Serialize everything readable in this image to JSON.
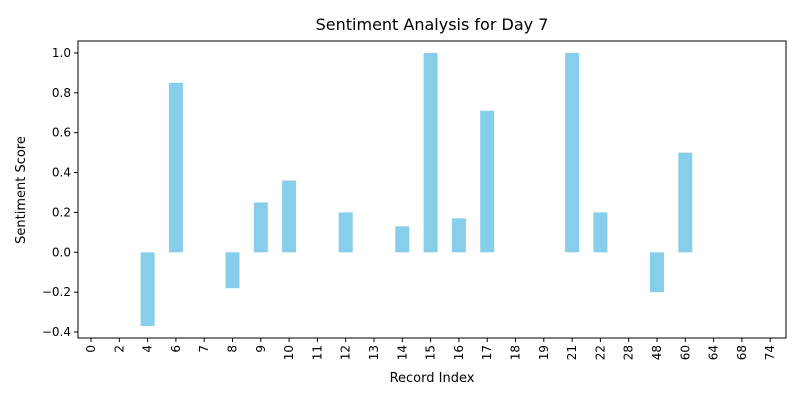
{
  "chart_data": {
    "type": "bar",
    "title": "Sentiment Analysis for Day 7",
    "xlabel": "Record Index",
    "ylabel": "Sentiment Score",
    "categories": [
      "0",
      "2",
      "4",
      "6",
      "7",
      "8",
      "9",
      "10",
      "11",
      "12",
      "13",
      "14",
      "15",
      "16",
      "17",
      "18",
      "19",
      "21",
      "22",
      "28",
      "48",
      "60",
      "64",
      "68",
      "74"
    ],
    "values": [
      0,
      0,
      -0.37,
      0.85,
      0,
      -0.18,
      0.25,
      0.36,
      0,
      0.2,
      0,
      0.13,
      1.0,
      0.17,
      0.71,
      0,
      0,
      1.0,
      0.2,
      0,
      -0.2,
      0.5,
      0,
      0,
      0
    ],
    "ylim": [
      -0.43,
      1.06
    ],
    "yticks": [
      "-0.4",
      "-0.2",
      "0.0",
      "0.2",
      "0.4",
      "0.6",
      "0.8",
      "1.0"
    ],
    "bar_color": "#87CEEB",
    "grid": false,
    "legend": false
  }
}
